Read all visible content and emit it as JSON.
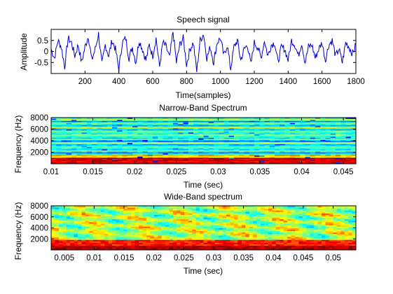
{
  "chart_data": [
    {
      "type": "line",
      "title": "Speech signal",
      "xlabel": "Time(samples)",
      "ylabel": "Amplitude",
      "xlim": [
        0,
        1800
      ],
      "ylim": [
        -1,
        1
      ],
      "xticks": [
        200,
        400,
        600,
        800,
        1000,
        1200,
        1400,
        1600,
        1800
      ],
      "xtick_labels": [
        "200",
        "400",
        "600",
        "800",
        "1000",
        "1200",
        "1400",
        "1600",
        "1800"
      ],
      "yticks": [
        0.5,
        0,
        -0.5
      ],
      "ytick_labels": [
        "0.5",
        "0",
        "-0.5"
      ],
      "line_color": "#0000cc",
      "series": [
        {
          "sample_step": 20,
          "values": [
            0.1,
            -0.3,
            0.5,
            0.2,
            -0.7,
            0.6,
            0.4,
            -0.2,
            0.3,
            -0.5,
            0.2,
            0.7,
            -0.4,
            0.1,
            0.8,
            -0.6,
            0.3,
            -0.2,
            0.5,
            0.1,
            -0.8,
            0.4,
            0.6,
            -0.3,
            0.2,
            -0.5,
            0.5,
            0.1,
            -0.4,
            0.3,
            -0.2,
            0.6,
            -0.7,
            0.4,
            0.2,
            -0.3,
            0.9,
            -0.5,
            0.3,
            0.6,
            -0.6,
            0.1,
            0.4,
            -0.9,
            0.5,
            0.8,
            -0.3,
            0.2,
            -0.5,
            0.4,
            0.6,
            -0.2,
            0.3,
            -0.8,
            0.2,
            0.5,
            -0.4,
            0.1,
            0.3,
            -0.6,
            0.4,
            0.2,
            -0.3,
            0.5,
            -0.2,
            0.3,
            0.4,
            -0.5,
            0.2,
            0.1,
            -0.4,
            0.5,
            0.3,
            -0.2,
            0.4,
            -0.5,
            0.2,
            0.3,
            -0.3,
            0.1,
            0.4,
            -0.4,
            0.3,
            0.5,
            -0.2,
            0.1,
            -0.5,
            0.4,
            0.2,
            -0.1,
            0.3
          ]
        }
      ]
    },
    {
      "type": "heatmap",
      "title": "Narrow-Band Spectrum",
      "xlabel": "Time (sec)",
      "ylabel": "Frequency (Hz)",
      "xlim": [
        0.01,
        0.0465
      ],
      "ylim": [
        0,
        8000
      ],
      "xticks": [
        0.01,
        0.015,
        0.02,
        0.025,
        0.03,
        0.035,
        0.04,
        0.045
      ],
      "xtick_labels": [
        "0.01",
        "0.015",
        "0.02",
        "0.025",
        "0.03",
        "0.035",
        "0.04",
        "0.045"
      ],
      "yticks": [
        2000,
        4000,
        6000,
        8000
      ],
      "ytick_labels": [
        "2000",
        "4000",
        "6000",
        "8000"
      ],
      "colormap": "jet",
      "description_of_energy": "horizontal harmonic bands; strongest energy (red) below ~800 Hz"
    },
    {
      "type": "heatmap",
      "title": "Wide-Band spectrum",
      "xlabel": "Time (sec)",
      "ylabel": "Frequency (Hz)",
      "xlim": [
        0.0028,
        0.0538
      ],
      "ylim": [
        0,
        8000
      ],
      "xticks": [
        0.005,
        0.01,
        0.015,
        0.02,
        0.025,
        0.03,
        0.035,
        0.04,
        0.045,
        0.05
      ],
      "xtick_labels": [
        "0.005",
        "0.01",
        "0.015",
        "0.02",
        "0.025",
        "0.03",
        "0.035",
        "0.04",
        "0.045",
        "0.05"
      ],
      "yticks": [
        2000,
        4000,
        6000,
        8000
      ],
      "ytick_labels": [
        "2000",
        "4000",
        "6000",
        "8000"
      ],
      "colormap": "jet",
      "description_of_energy": "broad patches; strongest energy (dark red) below ~1500 Hz"
    }
  ]
}
